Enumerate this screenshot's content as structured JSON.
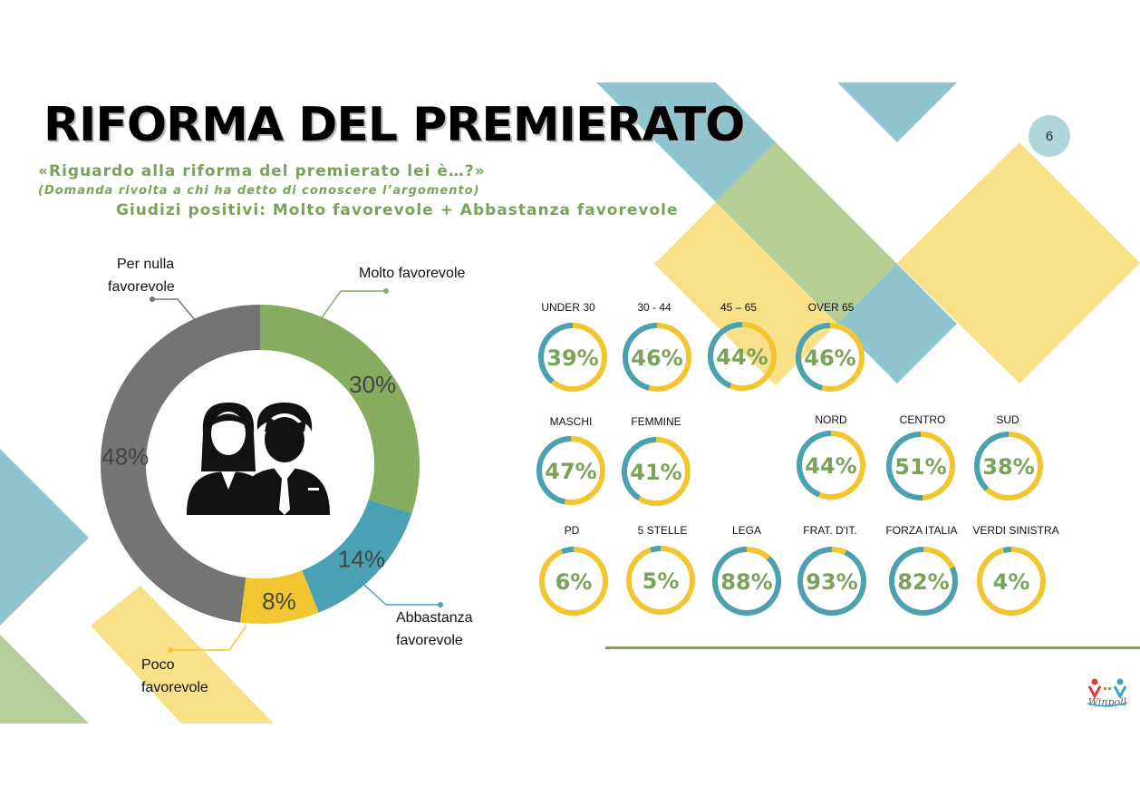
{
  "header": {
    "title": "RIFORMA DEL PREMIERATO",
    "subtitle": "«Riguardo alla riforma del premierato lei è…?»",
    "note": "(Domanda rivolta a chi ha detto di conoscere l’argomento)",
    "positive_label": "Giudizi positivi: Molto favorevole + Abbastanza favorevole",
    "page_number": "6"
  },
  "chart_data": [
    {
      "type": "pie",
      "slices": [
        {
          "label": "Molto favorevole",
          "value": 30,
          "display": "30%",
          "color": "#85ac5f"
        },
        {
          "label": "Abbastanza favorevole",
          "value": 14,
          "display": "14%",
          "color": "#4aa1b3"
        },
        {
          "label": "Poco favorevole",
          "value": 8,
          "display": "8%",
          "color": "#f2c630"
        },
        {
          "label": "Per nulla favorevole",
          "value": 48,
          "display": "48%",
          "color": "#747474"
        }
      ]
    },
    {
      "type": "bar",
      "categories": [
        "UNDER 30",
        "30 - 44",
        "45 – 65",
        "OVER 65",
        "MASCHI",
        "FEMMINE",
        "NORD",
        "CENTRO",
        "SUD",
        "PD",
        "5 STELLE",
        "LEGA",
        "FRAT. D'IT.",
        "FORZA ITALIA",
        "VERDI SINISTRA"
      ],
      "values": [
        39,
        46,
        44,
        46,
        47,
        41,
        44,
        51,
        38,
        6,
        5,
        88,
        93,
        82,
        4
      ],
      "displays": [
        "39%",
        "46%",
        "44%",
        "46%",
        "47%",
        "41%",
        "44%",
        "51%",
        "38%",
        "6%",
        "5%",
        "88%",
        "93%",
        "82%",
        "4%"
      ]
    }
  ],
  "donut_labels": {
    "molto": "Molto favorevole",
    "abbastanza_1": "Abbastanza",
    "abbastanza_2": "favorevole",
    "poco_1": "Poco",
    "poco_2": "favorevole",
    "nulla_1": "Per nulla",
    "nulla_2": "favorevole"
  },
  "colors": {
    "green": "#85ac5f",
    "teal": "#4aa1b3",
    "yellow": "#f2c630",
    "grey": "#747474",
    "number_green": "#7aa35a"
  },
  "icons": {
    "center": "business-people-icon",
    "logo": "winpoll-logo"
  },
  "logo_text": "Winpoll"
}
